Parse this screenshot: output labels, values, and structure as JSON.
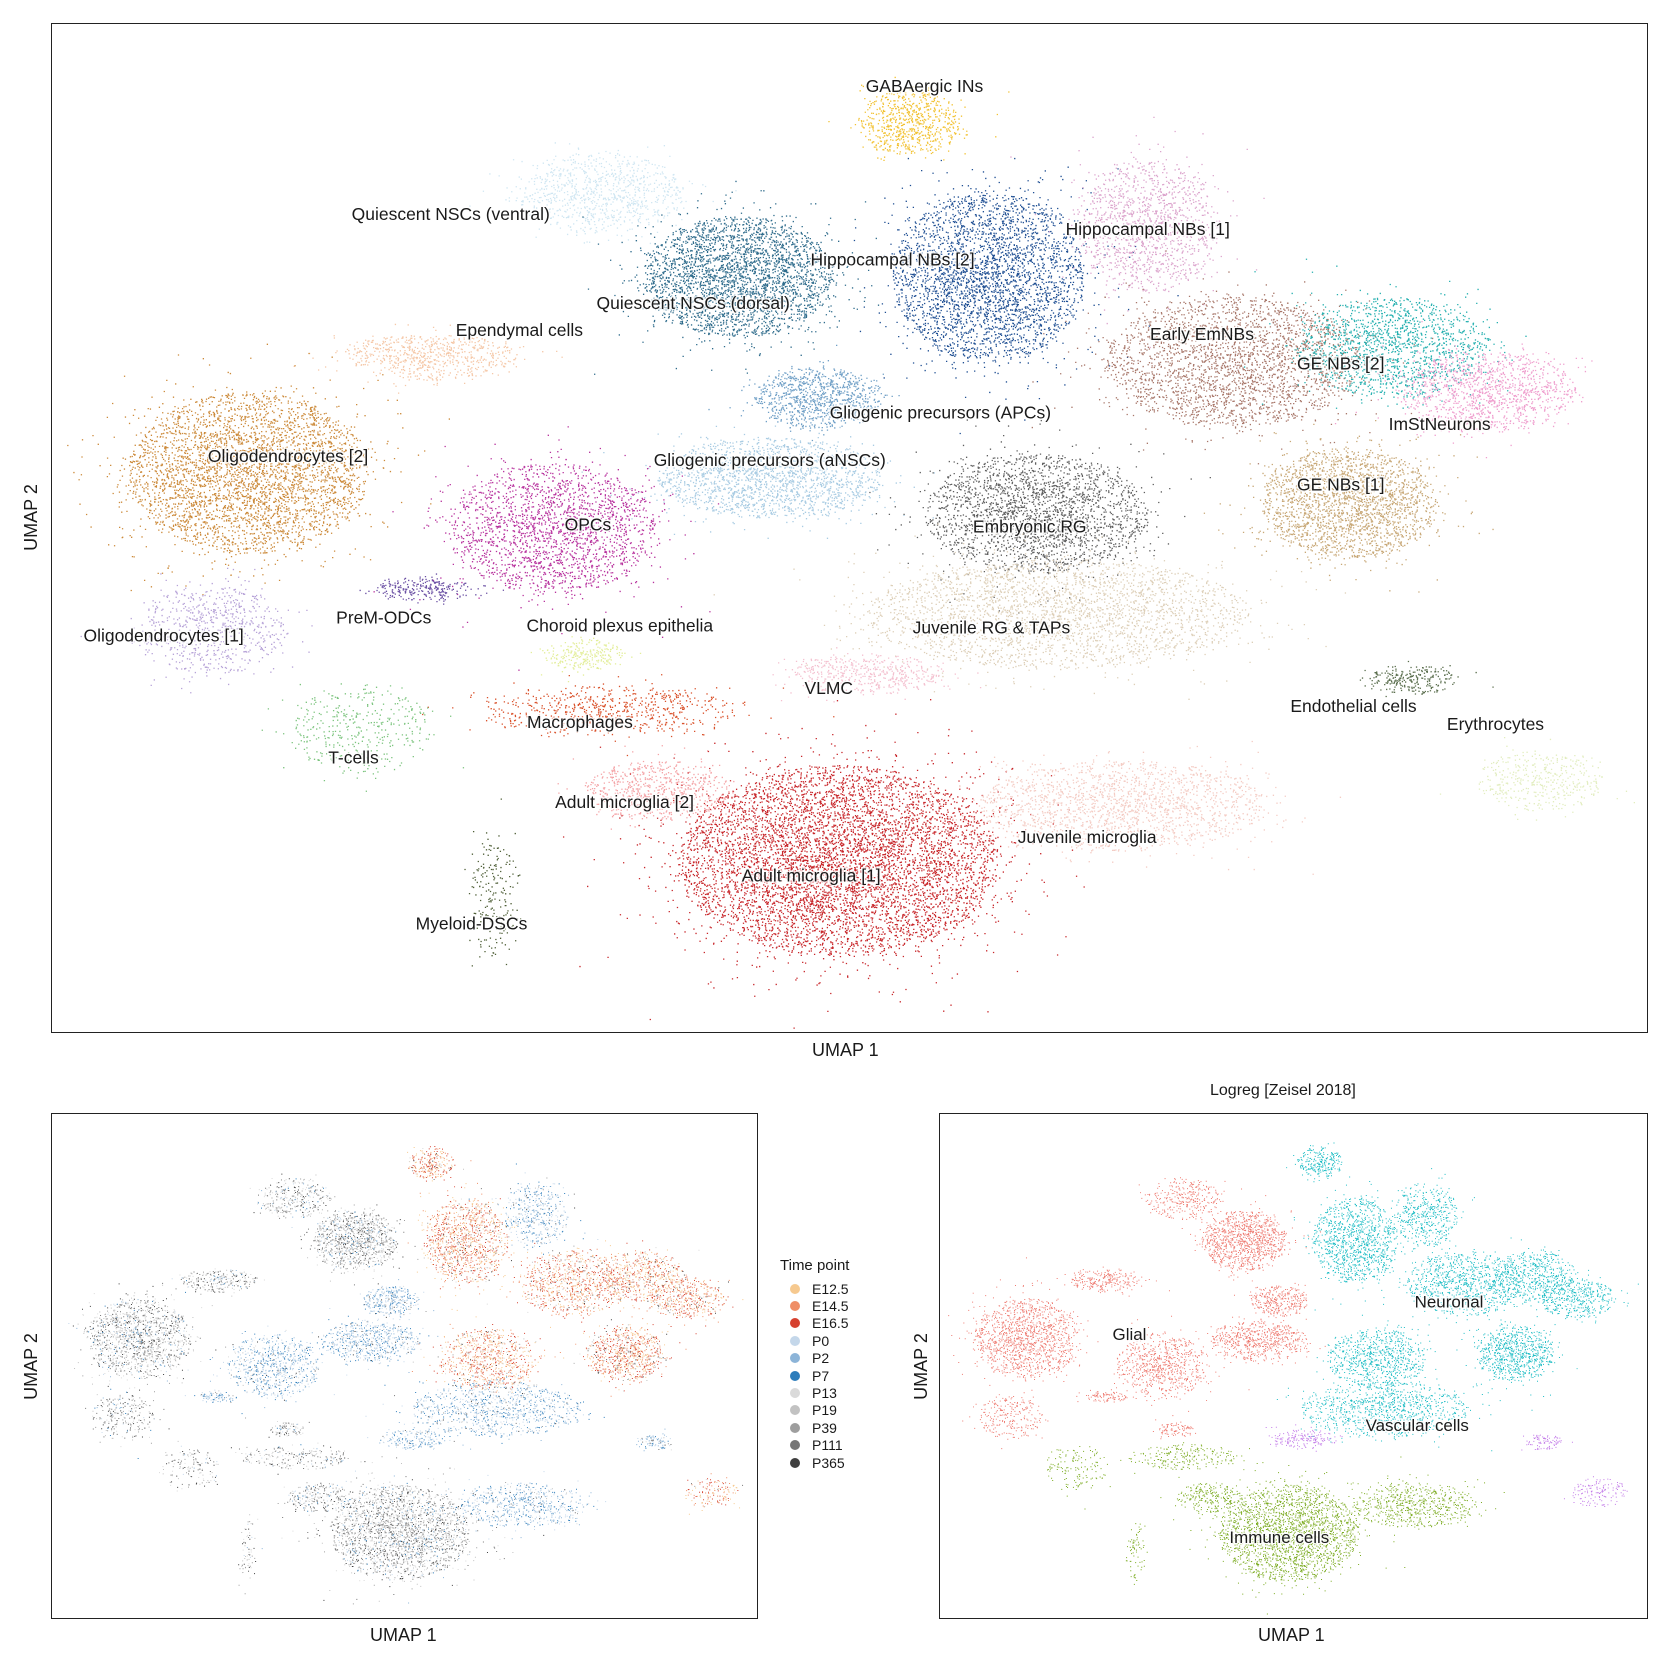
{
  "chart_data": [
    {
      "type": "scatter",
      "title": "",
      "xlabel": "UMAP 1",
      "ylabel": "UMAP 2",
      "xlim": [
        0,
        100
      ],
      "ylim": [
        0,
        100
      ],
      "clusters": [
        {
          "name": "GABAergic INs",
          "color": "#f2c233",
          "cx": 53.7,
          "cy": 90.3,
          "rx": 3.2,
          "ry": 3.3,
          "n": 700,
          "lx": 54.7,
          "ly": 93.7
        },
        {
          "name": "Quiescent NSCs (ventral)",
          "color": "#cfe6f2",
          "cx": 34.3,
          "cy": 83.3,
          "rx": 5.3,
          "ry": 4.0,
          "n": 900,
          "lx": 25.0,
          "ly": 81.0
        },
        {
          "name": "Quiescent NSCs (dorsal)",
          "color": "#2f6c8c",
          "cx": 43.0,
          "cy": 75.0,
          "rx": 6.0,
          "ry": 6.0,
          "n": 3000,
          "lx": 40.2,
          "ly": 72.2
        },
        {
          "name": "Hippocampal NBs [2]",
          "color": "#1f4f93",
          "cx": 58.7,
          "cy": 75.0,
          "rx": 6.0,
          "ry": 8.5,
          "n": 3200,
          "lx": 52.7,
          "ly": 76.5
        },
        {
          "name": "Hippocampal NBs [1]",
          "color": "#dca5cd",
          "cx": 68.7,
          "cy": 80.0,
          "rx": 4.5,
          "ry": 6.5,
          "n": 1300,
          "lx": 68.7,
          "ly": 79.5
        },
        {
          "name": "Ependymal cells",
          "color": "#f5c8a8",
          "cx": 23.7,
          "cy": 67.0,
          "rx": 5.5,
          "ry": 2.3,
          "n": 700,
          "lx": 29.3,
          "ly": 69.5
        },
        {
          "name": "Oligodendrocytes [2]",
          "color": "#cc8a3a",
          "cx": 12.3,
          "cy": 55.5,
          "rx": 7.5,
          "ry": 8.0,
          "n": 3800,
          "lx": 14.8,
          "ly": 57.0
        },
        {
          "name": "Gliogenic precursors (APCs)",
          "color": "#6f9fc6",
          "cx": 48.0,
          "cy": 63.0,
          "rx": 4.0,
          "ry": 3.0,
          "n": 900,
          "lx": 55.7,
          "ly": 61.3
        },
        {
          "name": "Gliogenic precursors (aNSCs)",
          "color": "#a9cce3",
          "cx": 45.0,
          "cy": 55.0,
          "rx": 7.0,
          "ry": 4.0,
          "n": 1800,
          "lx": 45.0,
          "ly": 56.6
        },
        {
          "name": "Early EmNBs",
          "color": "#a8776a",
          "cx": 74.0,
          "cy": 66.5,
          "rx": 8.0,
          "ry": 6.5,
          "n": 2600,
          "lx": 72.1,
          "ly": 69.1
        },
        {
          "name": "GE NBs [2]",
          "color": "#26b0b0",
          "cx": 84.0,
          "cy": 68.0,
          "rx": 6.0,
          "ry": 5.0,
          "n": 1500,
          "lx": 80.8,
          "ly": 66.2
        },
        {
          "name": "ImStNeurons",
          "color": "#ef9fce",
          "cx": 90.0,
          "cy": 63.5,
          "rx": 5.5,
          "ry": 4.0,
          "n": 1200,
          "lx": 87.0,
          "ly": 60.2
        },
        {
          "name": "GE NBs [1]",
          "color": "#c8a877",
          "cx": 81.3,
          "cy": 52.5,
          "rx": 5.5,
          "ry": 5.5,
          "n": 2200,
          "lx": 80.8,
          "ly": 54.2
        },
        {
          "name": "Embryonic RG",
          "color": "#5f5f5f",
          "cx": 61.7,
          "cy": 51.5,
          "rx": 7.0,
          "ry": 6.0,
          "n": 2300,
          "lx": 61.3,
          "ly": 50.0
        },
        {
          "name": "OPCs",
          "color": "#b8339e",
          "cx": 31.3,
          "cy": 50.0,
          "rx": 6.5,
          "ry": 6.5,
          "n": 2100,
          "lx": 33.6,
          "ly": 50.2
        },
        {
          "name": "PreM-ODCs",
          "color": "#6a4fa3",
          "cx": 23.3,
          "cy": 44.0,
          "rx": 3.0,
          "ry": 1.2,
          "n": 250,
          "lx": 20.8,
          "ly": 41.0
        },
        {
          "name": "Oligodendrocytes [1]",
          "color": "#b7a3d8",
          "cx": 10.0,
          "cy": 40.0,
          "rx": 4.5,
          "ry": 4.5,
          "n": 700,
          "lx": 7.0,
          "ly": 39.2
        },
        {
          "name": "Choroid plexus epithelia",
          "color": "#e3ee9a",
          "cx": 33.3,
          "cy": 37.5,
          "rx": 2.5,
          "ry": 1.5,
          "n": 250,
          "lx": 35.6,
          "ly": 40.2
        },
        {
          "name": "Juvenile RG & TAPs",
          "color": "#ddcfb8",
          "cx": 63.0,
          "cy": 41.5,
          "rx": 12.0,
          "ry": 5.5,
          "n": 2800,
          "lx": 58.9,
          "ly": 40.0
        },
        {
          "name": "VLMC",
          "color": "#f4c0cf",
          "cx": 51.0,
          "cy": 35.5,
          "rx": 5.0,
          "ry": 2.0,
          "n": 500,
          "lx": 48.7,
          "ly": 34.0
        },
        {
          "name": "Endothelial cells",
          "color": "#5a6e4d",
          "cx": 85.3,
          "cy": 35.0,
          "rx": 2.8,
          "ry": 1.5,
          "n": 250,
          "lx": 81.6,
          "ly": 32.2
        },
        {
          "name": "Erythrocytes",
          "color": "#e2edbf",
          "cx": 93.3,
          "cy": 25.0,
          "rx": 4.0,
          "ry": 3.0,
          "n": 400,
          "lx": 90.5,
          "ly": 30.4
        },
        {
          "name": "Macrophages",
          "color": "#d9512a",
          "cx": 34.7,
          "cy": 32.0,
          "rx": 8.0,
          "ry": 2.5,
          "n": 650,
          "lx": 33.1,
          "ly": 30.6
        },
        {
          "name": "T-cells",
          "color": "#7cc47e",
          "cx": 19.3,
          "cy": 30.0,
          "rx": 4.5,
          "ry": 4.5,
          "n": 400,
          "lx": 18.9,
          "ly": 27.1
        },
        {
          "name": "Adult microglia [2]",
          "color": "#f4a3a6",
          "cx": 38.0,
          "cy": 24.0,
          "rx": 4.5,
          "ry": 3.0,
          "n": 700,
          "lx": 35.9,
          "ly": 22.7
        },
        {
          "name": "Adult microglia [1]",
          "color": "#c8272b",
          "cx": 49.3,
          "cy": 17.0,
          "rx": 10.0,
          "ry": 9.5,
          "n": 6500,
          "lx": 47.6,
          "ly": 15.4
        },
        {
          "name": "Juvenile microglia",
          "color": "#f4ccc4",
          "cx": 67.0,
          "cy": 22.5,
          "rx": 9.0,
          "ry": 4.5,
          "n": 1800,
          "lx": 64.9,
          "ly": 19.2
        },
        {
          "name": "Myeloid-DSCs",
          "color": "#4f5f37",
          "cx": 27.7,
          "cy": 13.5,
          "rx": 1.5,
          "ry": 6.0,
          "n": 200,
          "lx": 26.3,
          "ly": 10.6
        }
      ]
    },
    {
      "type": "scatter",
      "title": "",
      "xlabel": "UMAP 1",
      "ylabel": "UMAP 2",
      "legend": {
        "title": "Time point",
        "position": "right",
        "entries": [
          {
            "label": "E12.5",
            "color": "#f6c98f"
          },
          {
            "label": "E14.5",
            "color": "#ef8e66"
          },
          {
            "label": "E16.5",
            "color": "#d6412f"
          },
          {
            "label": "P0",
            "color": "#c4d7ea"
          },
          {
            "label": "P2",
            "color": "#8cb4d8"
          },
          {
            "label": "P7",
            "color": "#2d7dbb"
          },
          {
            "label": "P13",
            "color": "#dadada"
          },
          {
            "label": "P19",
            "color": "#c2c2c2"
          },
          {
            "label": "P39",
            "color": "#9e9e9e"
          },
          {
            "label": "P111",
            "color": "#767676"
          },
          {
            "label": "P365",
            "color": "#3f3f3f"
          }
        ]
      }
    },
    {
      "type": "scatter",
      "title": "Logreg [Zeisel 2018]",
      "xlabel": "UMAP 1",
      "ylabel": "UMAP 2",
      "categories": [
        {
          "label": "Glial",
          "color": "#ee7a70",
          "lx": 26.8,
          "ly": 56.0
        },
        {
          "label": "Neuronal",
          "color": "#1bbcc4",
          "lx": 72.0,
          "ly": 62.5
        },
        {
          "label": "Vascular cells",
          "color": "#c27ae8",
          "lx": 67.5,
          "ly": 38.0
        },
        {
          "label": "Immune cells",
          "color": "#7aaa1e",
          "lx": 48.0,
          "ly": 15.8
        }
      ]
    }
  ]
}
